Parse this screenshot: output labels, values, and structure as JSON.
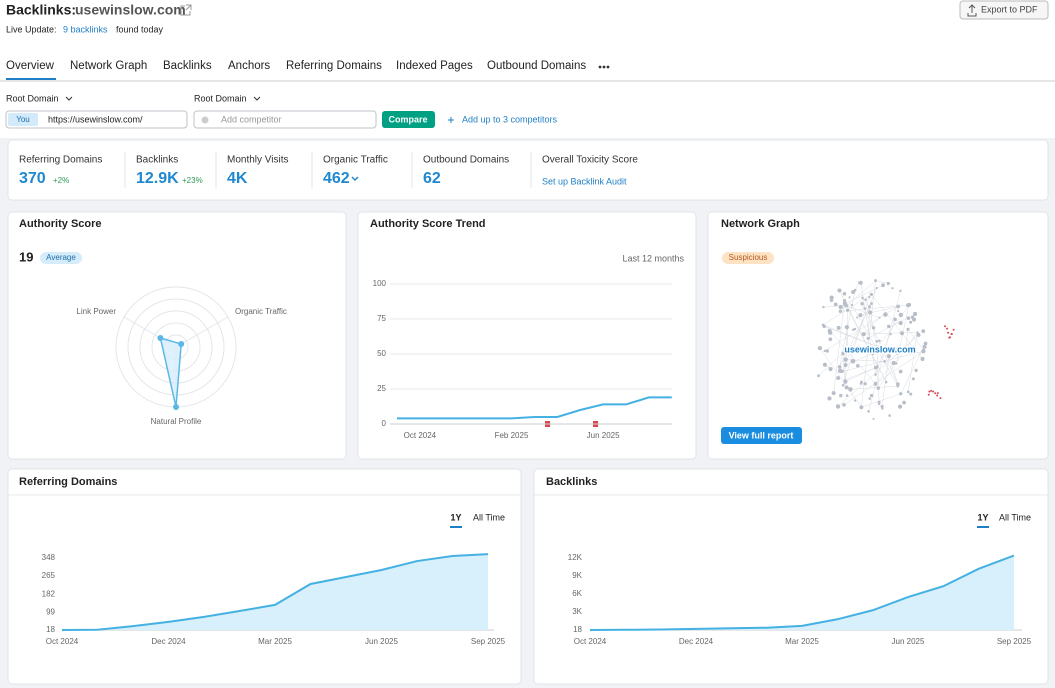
{
  "header": {
    "title": "Backlinks:",
    "domain": "usewinslow.com",
    "export": "Export to PDF",
    "live_update": "Live Update:",
    "live_link": "9 backlinks",
    "live_tail": "found today"
  },
  "tabs": [
    "Overview",
    "Network Graph",
    "Backlinks",
    "Anchors",
    "Referring Domains",
    "Indexed Pages",
    "Outbound Domains"
  ],
  "controls": {
    "scope_1": "Root Domain",
    "scope_2": "Root Domain",
    "you": "You",
    "url": "https://usewinslow.com/",
    "competitor_placeholder": "Add competitor",
    "compare": "Compare",
    "add_more": "Add up to 3 competitors"
  },
  "stats": [
    {
      "label": "Referring Domains",
      "value": "370",
      "change": "+2%"
    },
    {
      "label": "Backlinks",
      "value": "12.9K",
      "change": "+23%"
    },
    {
      "label": "Monthly Visits",
      "value": "4K"
    },
    {
      "label": "Organic Traffic",
      "value": "462"
    },
    {
      "label": "Outbound Domains",
      "value": "62"
    },
    {
      "label": "Overall Toxicity Score",
      "link": "Set up Backlink Audit"
    }
  ],
  "cards": {
    "authority": {
      "title": "Authority Score",
      "score": "19",
      "badge": "Average"
    },
    "trend": {
      "title": "Authority Score Trend",
      "period": "Last 12 months"
    },
    "network": {
      "title": "Network Graph",
      "badge": "Suspicious",
      "node_label": "usewinslow.com",
      "button": "View full report"
    },
    "ref_domains": {
      "title": "Referring Domains",
      "toggle": [
        "1Y",
        "All Time"
      ]
    },
    "backlinks": {
      "title": "Backlinks",
      "toggle": [
        "1Y",
        "All Time"
      ]
    }
  },
  "chart_data": [
    {
      "type": "radar",
      "categories": [
        "Link Power",
        "Organic Traffic",
        "Natural Profile"
      ],
      "values": [
        30,
        10,
        100
      ],
      "ylim": [
        0,
        100
      ],
      "color": "#5bb8e6"
    },
    {
      "type": "line",
      "categories": [
        null,
        "Oct 2024",
        null,
        null,
        null,
        "Feb 2025",
        null,
        null,
        null,
        "Jun 2025",
        null,
        null,
        null
      ],
      "series": [
        {
          "name": "Authority Score",
          "color": "#45b1e2",
          "values": [
            4,
            4,
            4,
            4,
            4,
            4,
            5,
            5,
            10,
            14,
            14,
            19,
            19
          ]
        }
      ],
      "ylim": [
        0,
        100
      ],
      "yticks": [
        0,
        25,
        50,
        75,
        100
      ],
      "grid": true
    },
    {
      "type": "area",
      "categories": [
        "Oct 2024",
        null,
        null,
        "Dec 2024",
        null,
        null,
        "Mar 2025",
        null,
        null,
        "Jun 2025",
        null,
        null,
        "Sep 2025"
      ],
      "series": [
        {
          "name": "Referring Domains",
          "color": "#45b1e2",
          "fill": "#d7f0fb",
          "values": [
            18,
            19,
            36,
            55,
            78,
            105,
            133,
            229,
            261,
            293,
            334,
            357,
            366
          ]
        }
      ],
      "ylim": [
        18,
        370
      ],
      "yticks": [
        18,
        99,
        182,
        265,
        348
      ],
      "grid": false
    },
    {
      "type": "area",
      "categories": [
        "Oct 2024",
        null,
        null,
        "Dec 2024",
        null,
        null,
        "Mar 2025",
        null,
        null,
        "Jun 2025",
        null,
        null,
        "Sep 2025"
      ],
      "series": [
        {
          "name": "Backlinks",
          "color": "#45b1e2",
          "fill": "#d7f0fb",
          "values": [
            18,
            50,
            100,
            200,
            300,
            400,
            700,
            1800,
            3300,
            5500,
            7300,
            10200,
            12400
          ]
        }
      ],
      "ylim": [
        18,
        13000
      ],
      "yticks": [
        18,
        {
          "value": 3000,
          "label": "3K"
        },
        {
          "value": 6000,
          "label": "6K"
        },
        {
          "value": 9000,
          "label": "9K"
        },
        {
          "value": 12000,
          "label": "12K"
        }
      ],
      "grid": false
    }
  ]
}
